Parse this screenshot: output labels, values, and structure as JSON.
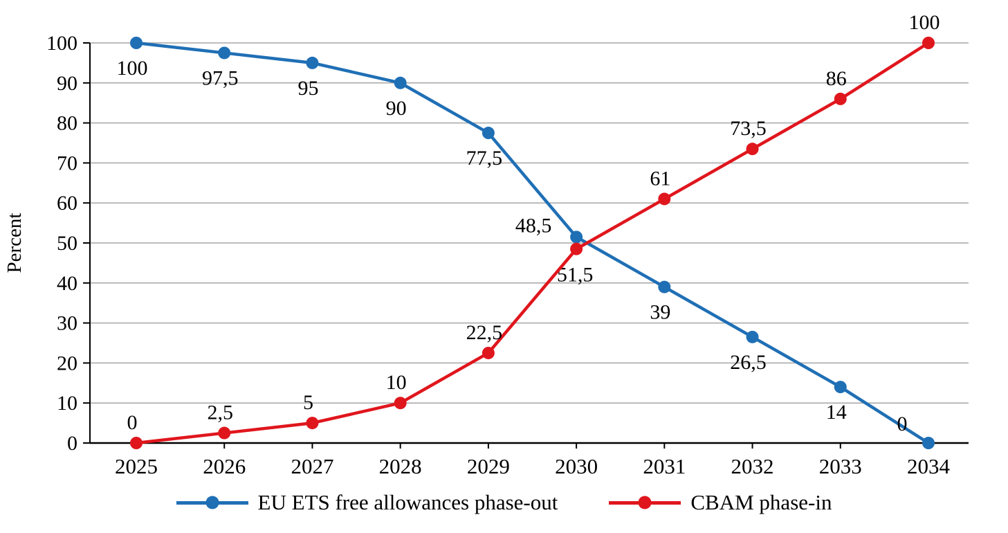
{
  "chart_data": {
    "type": "line",
    "ylabel": "Percent",
    "categories": [
      "2025",
      "2026",
      "2027",
      "2028",
      "2029",
      "2030",
      "2031",
      "2032",
      "2033",
      "2034"
    ],
    "series": [
      {
        "name": "EU ETS free allowances phase-out",
        "color": "#1F6FB5",
        "values": [
          100,
          97.5,
          95,
          90,
          77.5,
          51.5,
          39,
          26.5,
          14,
          0
        ],
        "labels": [
          "100",
          "97,5",
          "95",
          "90",
          "77,5",
          "51,5",
          "39",
          "26,5",
          "14",
          "0"
        ],
        "label_position": "below"
      },
      {
        "name": "CBAM phase-in",
        "color": "#E0161D",
        "values": [
          0,
          2.5,
          5,
          10,
          22.5,
          48.5,
          61,
          73.5,
          86,
          100
        ],
        "labels": [
          "0",
          "2,5",
          "5",
          "10",
          "22,5",
          "48,5",
          "61",
          "73,5",
          "86",
          "100"
        ],
        "label_position": "above"
      }
    ],
    "ylim": [
      0,
      100
    ],
    "ytick_step": 10,
    "grid": "horizontal",
    "legend_position": "bottom",
    "axis_color": "#000000",
    "grid_color": "#a6a6a6",
    "text_color": "#000000"
  }
}
